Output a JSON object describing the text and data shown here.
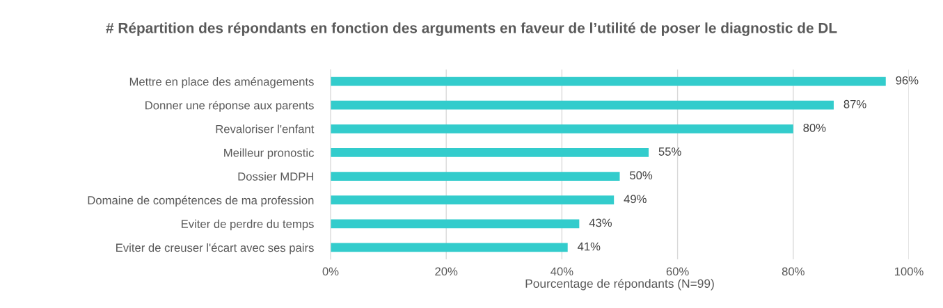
{
  "chart_data": {
    "type": "bar",
    "orientation": "horizontal",
    "title": "# Répartition des répondants en fonction des arguments en faveur de l’utilité de poser le diagnostic de DL",
    "xlabel": "Pourcentage de répondants (N=99)",
    "categories": [
      "Mettre en place des aménagements",
      "Donner une réponse aux parents",
      "Revaloriser l'enfant",
      "Meilleur pronostic",
      "Dossier MDPH",
      "Domaine de compétences de ma profession",
      "Eviter de perdre du temps",
      "Eviter de creuser l'écart avec ses pairs"
    ],
    "values": [
      96,
      87,
      80,
      55,
      50,
      49,
      43,
      41
    ],
    "value_labels": [
      "96%",
      "87%",
      "80%",
      "55%",
      "50%",
      "49%",
      "43%",
      "41%"
    ],
    "color": "#33cccc",
    "xlim": [
      0,
      100
    ],
    "xticks": [
      {
        "value": 0,
        "label": "0%"
      },
      {
        "value": 20,
        "label": "20%"
      },
      {
        "value": 40,
        "label": "40%"
      },
      {
        "value": 60,
        "label": "60%"
      },
      {
        "value": 80,
        "label": "80%"
      },
      {
        "value": 100,
        "label": "100%"
      }
    ],
    "grid": "x"
  }
}
